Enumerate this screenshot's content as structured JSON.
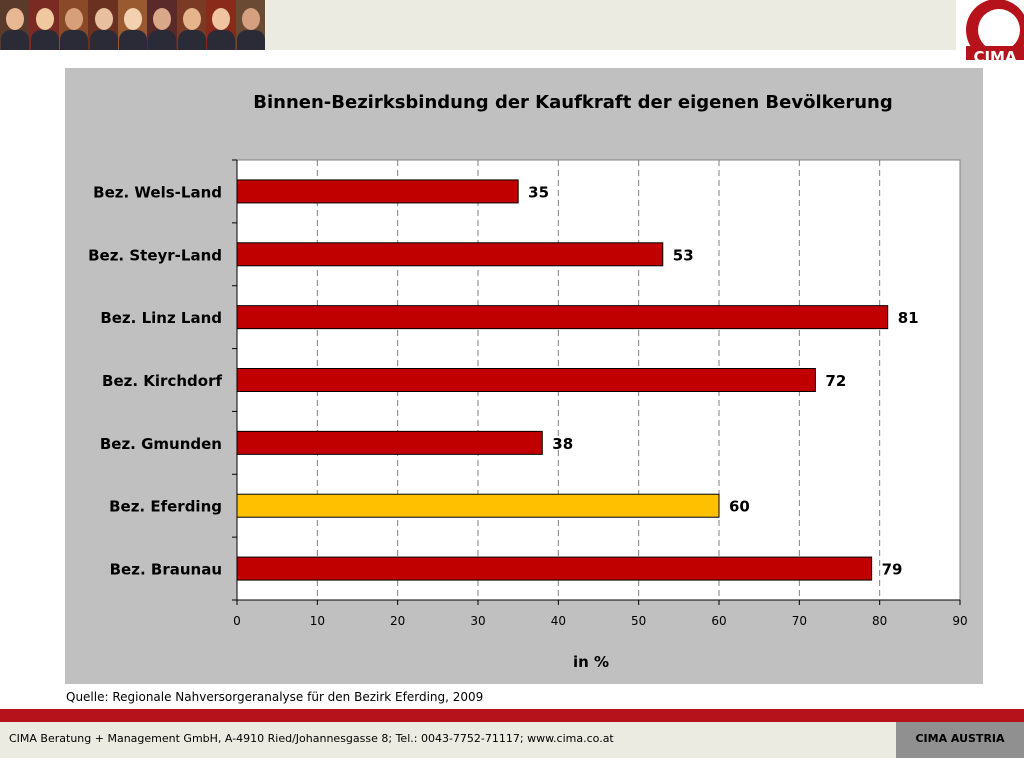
{
  "header": {
    "logo_text": "CIMA",
    "colors": {
      "brand_red": "#b5121b",
      "band": "#ecebe2"
    }
  },
  "chart_data": {
    "type": "bar",
    "orientation": "horizontal",
    "title": "Binnen-Bezirksbindung der Kaufkraft der eigenen Bevölkerung",
    "xlabel": "in %",
    "ylabel": "",
    "categories": [
      "Bez. Wels-Land",
      "Bez. Steyr-Land",
      "Bez. Linz Land",
      "Bez. Kirchdorf",
      "Bez. Gmunden",
      "Bez. Eferding",
      "Bez. Braunau"
    ],
    "values": [
      35,
      53,
      81,
      72,
      38,
      60,
      79
    ],
    "highlight": "Bez. Eferding",
    "bar_color": "#c00000",
    "highlight_color": "#ffc000",
    "xlim": [
      0,
      90
    ],
    "xticks": [
      0,
      10,
      20,
      30,
      40,
      50,
      60,
      70,
      80,
      90
    ],
    "grid": "vertical dashed",
    "data_labels": true
  },
  "source": "Quelle: Regionale Nahversorgeranalyse für den Bezirk Eferding, 2009",
  "footer": {
    "company": "CIMA Beratung + Management GmbH, A-4910 Ried/Johannesgasse 8; Tel.: 0043-7752-71117; www.cima.co.at",
    "brand": "CIMA AUSTRIA"
  }
}
